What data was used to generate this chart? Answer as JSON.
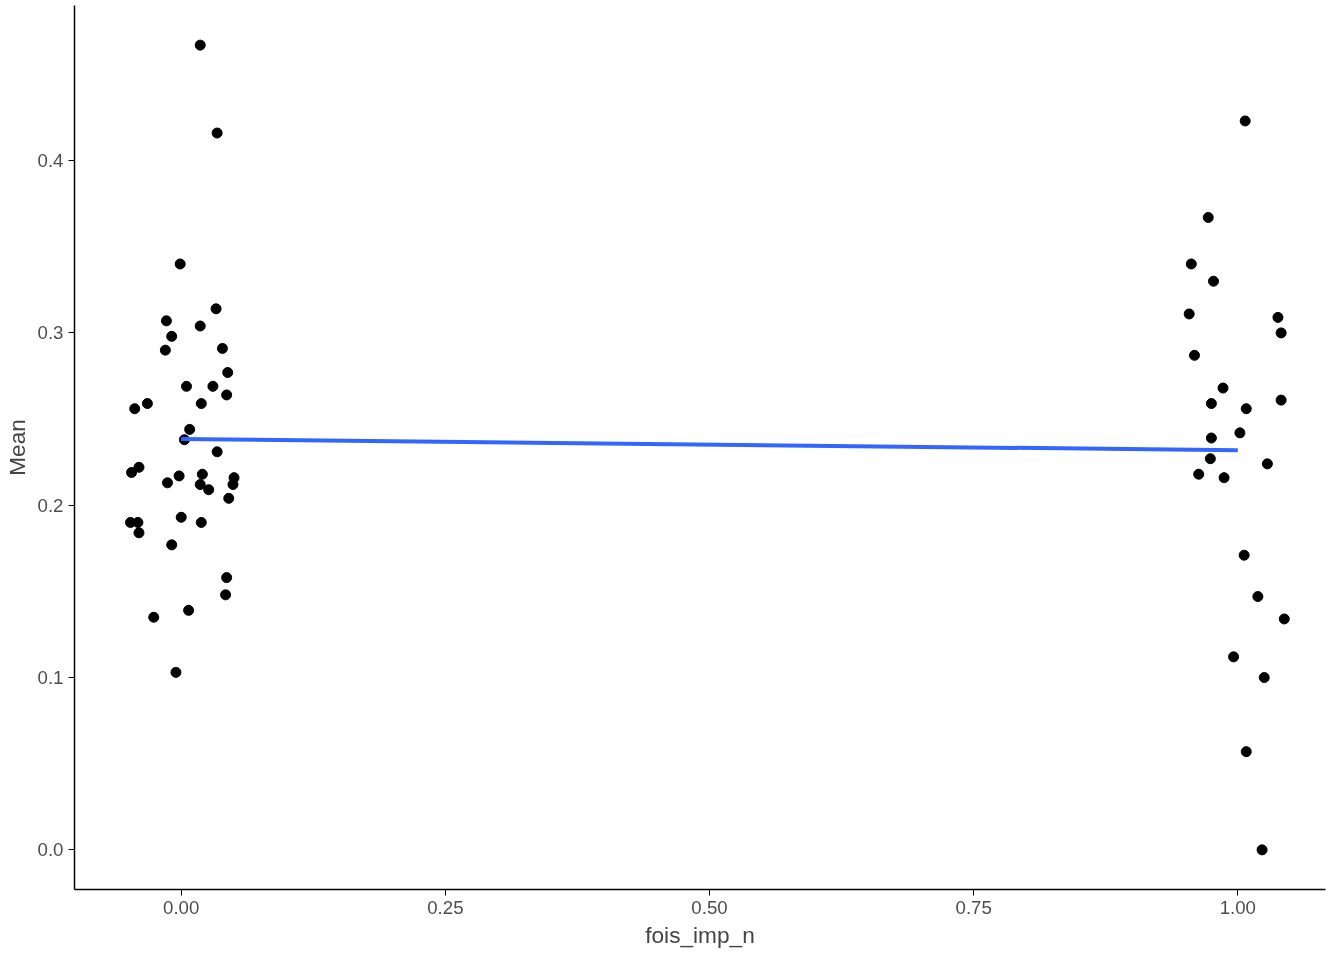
{
  "chart_data": {
    "type": "scatter",
    "xlabel": "fois_imp_n",
    "ylabel": "Mean",
    "xlim": [
      -0.101,
      1.083
    ],
    "ylim": [
      -0.023,
      0.49
    ],
    "xticks": [
      {
        "value": 0,
        "label": "0.00"
      },
      {
        "value": 0.25,
        "label": "0.25"
      },
      {
        "value": 0.5,
        "label": "0.50"
      },
      {
        "value": 0.75,
        "label": "0.75"
      },
      {
        "value": 1,
        "label": "1.00"
      }
    ],
    "yticks": [
      {
        "value": 0,
        "label": "0.0"
      },
      {
        "value": 0.1,
        "label": "0.1"
      },
      {
        "value": 0.2,
        "label": "0.2"
      },
      {
        "value": 0.3,
        "label": "0.3"
      },
      {
        "value": 0.4,
        "label": "0.4"
      }
    ],
    "grid": false,
    "series": [
      {
        "marker": "circle",
        "color": "#000000",
        "x": [
          0.018,
          0.034,
          -0.001,
          0.033,
          -0.014,
          0.018,
          -0.009,
          -0.015,
          0.039,
          0.044,
          0.005,
          0.03,
          0.043,
          -0.032,
          0.019,
          -0.044,
          0.008,
          0.003,
          0.034,
          -0.04,
          -0.047,
          -0.002,
          0.02,
          0.05,
          -0.013,
          0.018,
          0.026,
          0.049,
          0.045,
          -0.048,
          -0.041,
          0.0,
          0.019,
          -0.04,
          -0.009,
          0.043,
          0.042,
          0.007,
          -0.026,
          -0.005,
          1.007,
          0.972,
          0.956,
          0.977,
          0.954,
          1.038,
          1.041,
          0.959,
          0.986,
          0.975,
          1.041,
          1.008,
          1.002,
          0.975,
          0.974,
          1.028,
          0.963,
          0.987,
          1.006,
          1.019,
          1.044,
          0.996,
          1.025,
          1.008,
          1.023
        ],
        "values": [
          0.467,
          0.416,
          0.34,
          0.314,
          0.307,
          0.304,
          0.298,
          0.29,
          0.291,
          0.277,
          0.269,
          0.269,
          0.264,
          0.259,
          0.259,
          0.256,
          0.244,
          0.238,
          0.231,
          0.222,
          0.219,
          0.217,
          0.218,
          0.216,
          0.213,
          0.212,
          0.209,
          0.212,
          0.204,
          0.19,
          0.19,
          0.193,
          0.19,
          0.184,
          0.177,
          0.158,
          0.148,
          0.139,
          0.135,
          0.103,
          0.423,
          0.367,
          0.34,
          0.33,
          0.311,
          0.309,
          0.3,
          0.287,
          0.268,
          0.259,
          0.261,
          0.256,
          0.242,
          0.239,
          0.227,
          0.224,
          0.218,
          0.216,
          0.171,
          0.147,
          0.134,
          0.112,
          0.1,
          0.057,
          0.0
        ]
      },
      {
        "type": "line",
        "color": "#3366ff",
        "x": [
          0,
          1
        ],
        "values": [
          0.2385,
          0.2319
        ]
      }
    ]
  }
}
